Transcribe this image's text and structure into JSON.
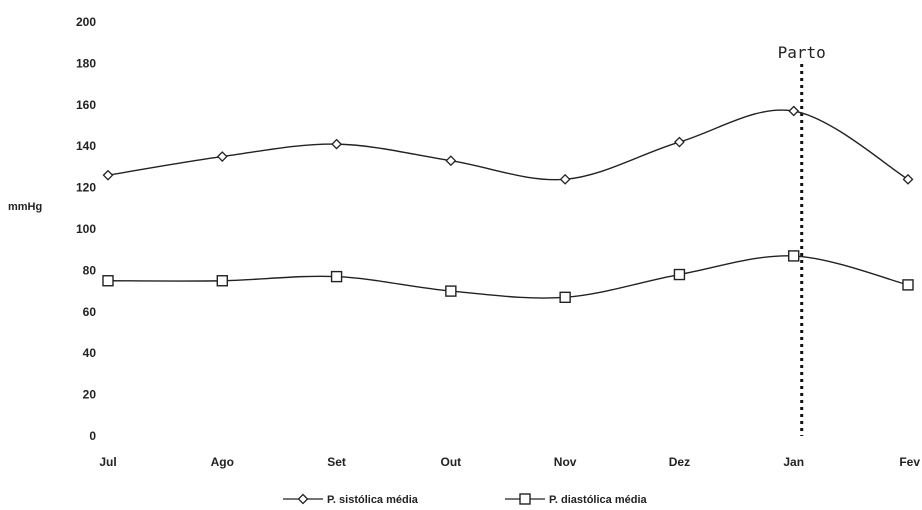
{
  "chart_data": {
    "type": "line",
    "title": "",
    "xlabel": "",
    "ylabel": "mmHg",
    "ylim": [
      0,
      200
    ],
    "yticks": [
      0,
      20,
      40,
      60,
      80,
      100,
      120,
      140,
      160,
      180,
      200
    ],
    "categories": [
      "Jul",
      "Ago",
      "Set",
      "Out",
      "Nov",
      "Dez",
      "Jan",
      "Fev"
    ],
    "series": [
      {
        "name": "P. sistólica média",
        "marker": "diamond",
        "values": [
          126,
          135,
          141,
          133,
          124,
          142,
          157,
          124
        ]
      },
      {
        "name": "P. diastólica média",
        "marker": "square",
        "values": [
          75,
          75,
          77,
          70,
          67,
          78,
          87,
          73
        ]
      }
    ],
    "annotation": {
      "label": "Parto",
      "x_category": "Jan",
      "style": "dotted vertical line"
    },
    "grid": false,
    "legend_position": "bottom"
  }
}
